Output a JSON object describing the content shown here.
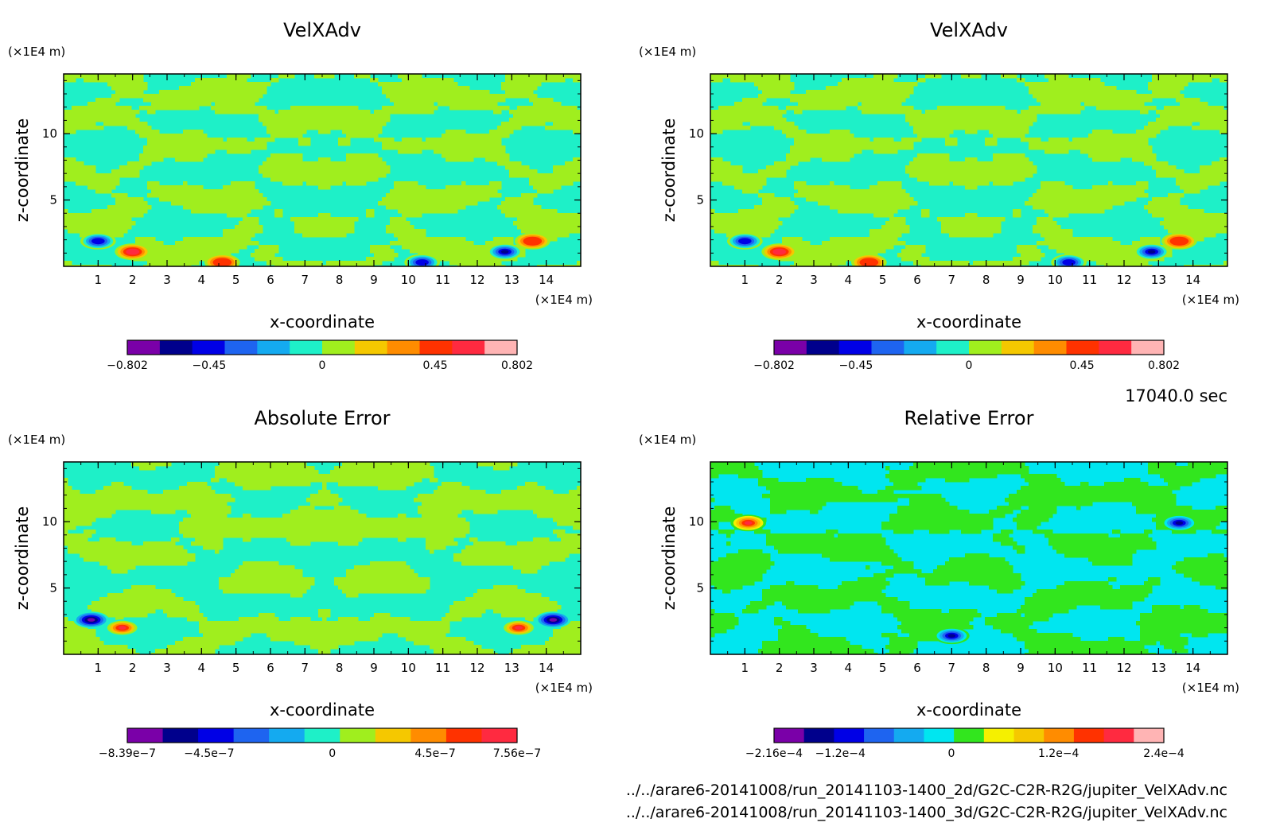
{
  "time_label": "17040.0 sec",
  "files": [
    "../../arare6-20141008/run_20141103-1400_2d/G2C-C2R-R2G/jupiter_VelXAdv.nc",
    "../../arare6-20141008/run_20141103-1400_3d/G2C-C2R-R2G/jupiter_VelXAdv.nc"
  ],
  "chart_data": [
    {
      "type": "heatmap",
      "title": "VelXAdv",
      "xlabel": "x-coordinate",
      "ylabel": "z-coordinate",
      "x_unit": "(×1E4 m)",
      "y_unit": "(×1E4 m)",
      "xlim": [
        0,
        15
      ],
      "ylim": [
        0,
        14.5
      ],
      "xticks": [
        1,
        2,
        3,
        4,
        5,
        6,
        7,
        8,
        9,
        10,
        11,
        12,
        13,
        14
      ],
      "yticks": [
        5,
        10
      ],
      "palette": "rainbow12",
      "colorbar": {
        "colors": [
          "#7a00a8",
          "#00008c",
          "#0000e6",
          "#1e64f0",
          "#14aaf0",
          "#1ef0c8",
          "#a0ee1e",
          "#f5c800",
          "#ff8c00",
          "#ff3200",
          "#ff2a40",
          "#ffb4b4"
        ],
        "ticks": [
          {
            "label": "−0.802",
            "pos": 0.0
          },
          {
            "label": "−0.45",
            "pos": 0.21
          },
          {
            "label": "0",
            "pos": 0.5
          },
          {
            "label": "0.45",
            "pos": 0.79
          },
          {
            "label": "0.802",
            "pos": 1.0
          }
        ]
      },
      "features": [
        {
          "x": 1.0,
          "z": 1.9,
          "v": -0.45
        },
        {
          "x": 2.0,
          "z": 1.1,
          "v": 0.6
        },
        {
          "x": 4.6,
          "z": 0.3,
          "v": 0.5
        },
        {
          "x": 10.4,
          "z": 0.3,
          "v": -0.5
        },
        {
          "x": 12.8,
          "z": 1.1,
          "v": -0.6
        },
        {
          "x": 13.6,
          "z": 1.9,
          "v": 0.45
        }
      ]
    },
    {
      "type": "heatmap",
      "title": "VelXAdv",
      "xlabel": "x-coordinate",
      "ylabel": "z-coordinate",
      "x_unit": "(×1E4 m)",
      "y_unit": "(×1E4 m)",
      "xlim": [
        0,
        15
      ],
      "ylim": [
        0,
        14.5
      ],
      "xticks": [
        1,
        2,
        3,
        4,
        5,
        6,
        7,
        8,
        9,
        10,
        11,
        12,
        13,
        14
      ],
      "yticks": [
        5,
        10
      ],
      "palette": "rainbow12",
      "colorbar": {
        "colors": [
          "#7a00a8",
          "#00008c",
          "#0000e6",
          "#1e64f0",
          "#14aaf0",
          "#1ef0c8",
          "#a0ee1e",
          "#f5c800",
          "#ff8c00",
          "#ff3200",
          "#ff2a40",
          "#ffb4b4"
        ],
        "ticks": [
          {
            "label": "−0.802",
            "pos": 0.0
          },
          {
            "label": "−0.45",
            "pos": 0.21
          },
          {
            "label": "0",
            "pos": 0.5
          },
          {
            "label": "0.45",
            "pos": 0.79
          },
          {
            "label": "0.802",
            "pos": 1.0
          }
        ]
      },
      "features": [
        {
          "x": 1.0,
          "z": 1.9,
          "v": -0.45
        },
        {
          "x": 2.0,
          "z": 1.1,
          "v": 0.6
        },
        {
          "x": 4.6,
          "z": 0.3,
          "v": 0.5
        },
        {
          "x": 10.4,
          "z": 0.3,
          "v": -0.5
        },
        {
          "x": 12.8,
          "z": 1.1,
          "v": -0.6
        },
        {
          "x": 13.6,
          "z": 1.9,
          "v": 0.45
        }
      ]
    },
    {
      "type": "heatmap",
      "title": "Absolute Error",
      "xlabel": "x-coordinate",
      "ylabel": "z-coordinate",
      "x_unit": "(×1E4 m)",
      "y_unit": "(×1E4 m)",
      "xlim": [
        0,
        15
      ],
      "ylim": [
        0,
        14.5
      ],
      "xticks": [
        1,
        2,
        3,
        4,
        5,
        6,
        7,
        8,
        9,
        10,
        11,
        12,
        13,
        14
      ],
      "yticks": [
        5,
        10
      ],
      "palette": "rainbow11",
      "colorbar": {
        "colors": [
          "#7a00a8",
          "#00008c",
          "#0000e6",
          "#1e64f0",
          "#14aaf0",
          "#1ef0c8",
          "#a0ee1e",
          "#f5c800",
          "#ff8c00",
          "#ff3200",
          "#ff2a40"
        ],
        "ticks": [
          {
            "label": "−8.39e−7",
            "pos": 0.0
          },
          {
            "label": "−4.5e−7",
            "pos": 0.21
          },
          {
            "label": "0",
            "pos": 0.526
          },
          {
            "label": "4.5e−7",
            "pos": 0.79
          },
          {
            "label": "7.56e−7",
            "pos": 1.0
          }
        ]
      },
      "features": [
        {
          "x": 0.8,
          "z": 2.6,
          "v": -5e-07
        },
        {
          "x": 1.7,
          "z": 2.0,
          "v": 5.5e-07
        },
        {
          "x": 13.2,
          "z": 2.0,
          "v": 5.5e-07
        },
        {
          "x": 14.2,
          "z": 2.6,
          "v": -5e-07
        }
      ]
    },
    {
      "type": "heatmap",
      "title": "Relative Error",
      "xlabel": "x-coordinate",
      "ylabel": "z-coordinate",
      "x_unit": "(×1E4 m)",
      "y_unit": "(×1E4 m)",
      "xlim": [
        0,
        15
      ],
      "ylim": [
        0,
        14.5
      ],
      "xticks": [
        1,
        2,
        3,
        4,
        5,
        6,
        7,
        8,
        9,
        10,
        11,
        12,
        13,
        14
      ],
      "yticks": [
        5,
        10
      ],
      "palette": "rainbow12b",
      "colorbar": {
        "colors": [
          "#7a00a8",
          "#00008c",
          "#0000e6",
          "#1e64f0",
          "#14aaf0",
          "#00e6f0",
          "#32e61e",
          "#f5f000",
          "#f5c800",
          "#ff8c00",
          "#ff3200",
          "#ff2a40",
          "#ffb4b4"
        ],
        "ticks": [
          {
            "label": "−2.16e−4",
            "pos": 0.0
          },
          {
            "label": "−1.2e−4",
            "pos": 0.17
          },
          {
            "label": "0",
            "pos": 0.455
          },
          {
            "label": "1.2e−4",
            "pos": 0.73
          },
          {
            "label": "2.4e−4",
            "pos": 1.0
          }
        ]
      },
      "features": [
        {
          "x": 1.1,
          "z": 9.9,
          "v": 0.0002
        },
        {
          "x": 13.6,
          "z": 9.9,
          "v": -0.00018
        },
        {
          "x": 7.0,
          "z": 1.4,
          "v": -0.00012
        }
      ]
    }
  ]
}
